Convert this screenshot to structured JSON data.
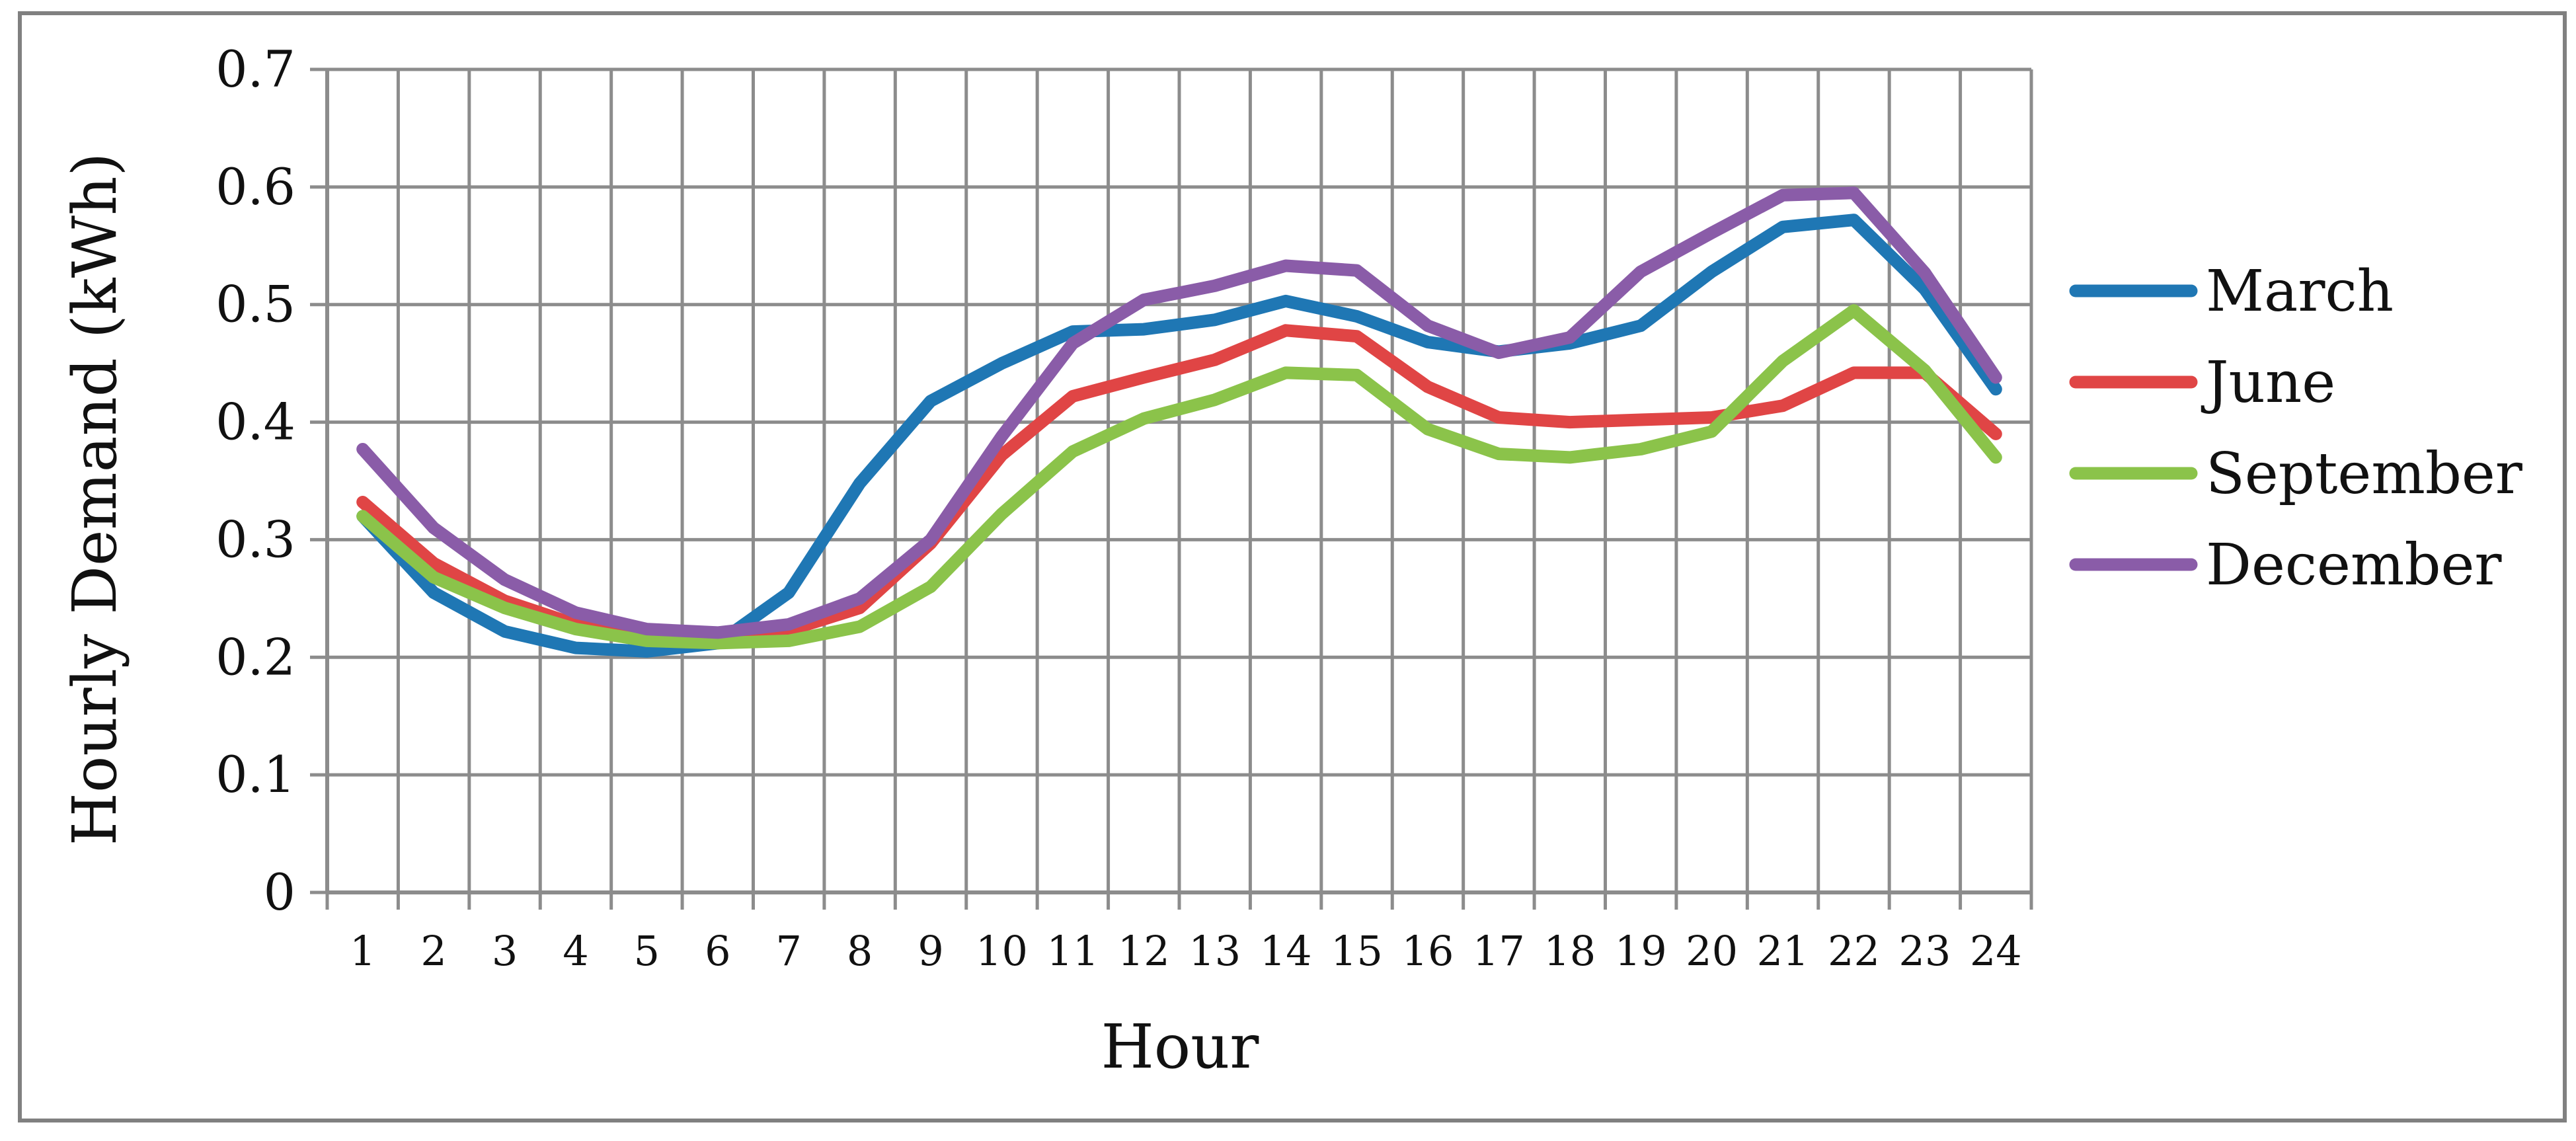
{
  "chart_data": {
    "type": "line",
    "title": "",
    "xlabel": "Hour",
    "ylabel": "Hourly Demand (kWh)",
    "categories": [
      "1",
      "2",
      "3",
      "4",
      "5",
      "6",
      "7",
      "8",
      "9",
      "10",
      "11",
      "12",
      "13",
      "14",
      "15",
      "16",
      "17",
      "18",
      "19",
      "20",
      "21",
      "22",
      "23",
      "24"
    ],
    "ylim": [
      0,
      0.7
    ],
    "yticks": [
      "0",
      "0.1",
      "0.2",
      "0.3",
      "0.4",
      "0.5",
      "0.6",
      "0.7"
    ],
    "grid": true,
    "legend_position": "right",
    "series": [
      {
        "name": "March",
        "color": "#1f77b4",
        "values": [
          0.32,
          0.255,
          0.222,
          0.208,
          0.205,
          0.212,
          0.255,
          0.348,
          0.418,
          0.45,
          0.477,
          0.479,
          0.487,
          0.503,
          0.49,
          0.468,
          0.46,
          0.467,
          0.482,
          0.528,
          0.566,
          0.572,
          0.513,
          0.428
        ]
      },
      {
        "name": "June",
        "color": "#e04545",
        "values": [
          0.332,
          0.28,
          0.248,
          0.228,
          0.218,
          0.218,
          0.223,
          0.242,
          0.297,
          0.372,
          0.422,
          0.438,
          0.453,
          0.478,
          0.473,
          0.43,
          0.404,
          0.4,
          0.402,
          0.404,
          0.414,
          0.442,
          0.442,
          0.39
        ]
      },
      {
        "name": "September",
        "color": "#8bc34a",
        "values": [
          0.32,
          0.268,
          0.242,
          0.224,
          0.214,
          0.212,
          0.214,
          0.226,
          0.26,
          0.322,
          0.375,
          0.403,
          0.419,
          0.442,
          0.44,
          0.394,
          0.373,
          0.37,
          0.377,
          0.392,
          0.452,
          0.495,
          0.444,
          0.37
        ]
      },
      {
        "name": "December",
        "color": "#8a5ca8",
        "values": [
          0.377,
          0.31,
          0.266,
          0.238,
          0.224,
          0.221,
          0.228,
          0.25,
          0.3,
          0.388,
          0.467,
          0.504,
          0.516,
          0.533,
          0.529,
          0.482,
          0.459,
          0.472,
          0.528,
          0.561,
          0.593,
          0.595,
          0.527,
          0.438
        ]
      }
    ]
  }
}
